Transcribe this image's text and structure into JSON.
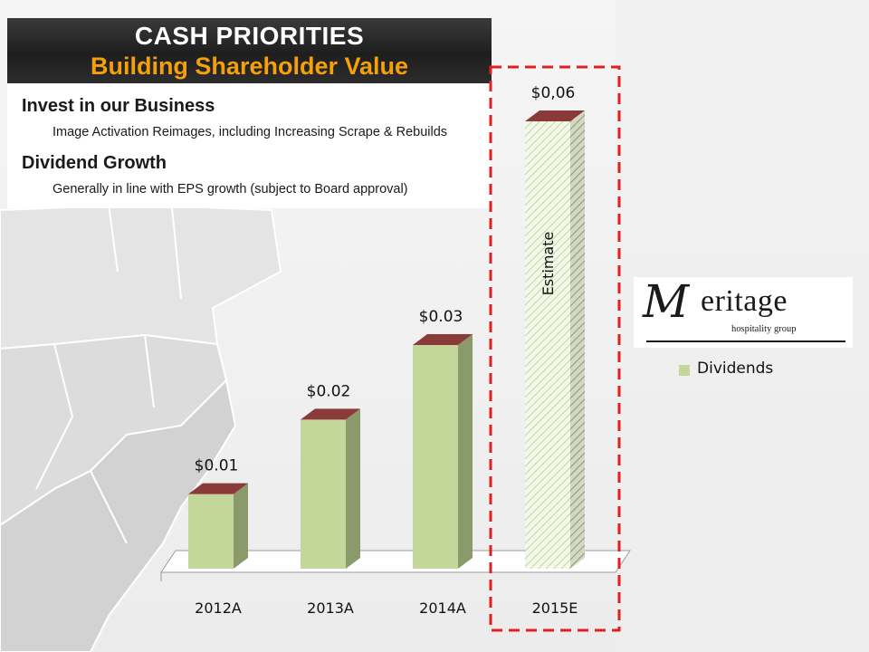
{
  "header": {
    "title": "CASH PRIORITIES",
    "subtitle": "Building Shareholder Value"
  },
  "priorities": [
    {
      "heading": "Invest in our Business",
      "detail": "Image Activation Reimages, including Increasing Scrape & Rebuilds"
    },
    {
      "heading": "Dividend Growth",
      "detail": "Generally in line with EPS growth (subject to Board approval)"
    }
  ],
  "logo": {
    "initial": "M",
    "word": "eritage",
    "tagline": "hospitality group"
  },
  "chart_data": {
    "type": "bar",
    "categories": [
      "2012A",
      "2013A",
      "2014A",
      "2015E"
    ],
    "series": [
      {
        "name": "Dividends",
        "values": [
          0.01,
          0.02,
          0.03,
          0.06
        ]
      }
    ],
    "data_labels": [
      "$0.01",
      "$0.02",
      "$0.03",
      "$0,06"
    ],
    "ylim": [
      0,
      0.06
    ],
    "estimate_index": 3,
    "estimate_label": "Estimate",
    "legend_position": "right",
    "grid": false,
    "colors": {
      "bar": "#c4d79b",
      "bar_side": "#8a9a6a",
      "bar_top": "#8b3a3a",
      "estimate_box": "#e02020"
    }
  }
}
